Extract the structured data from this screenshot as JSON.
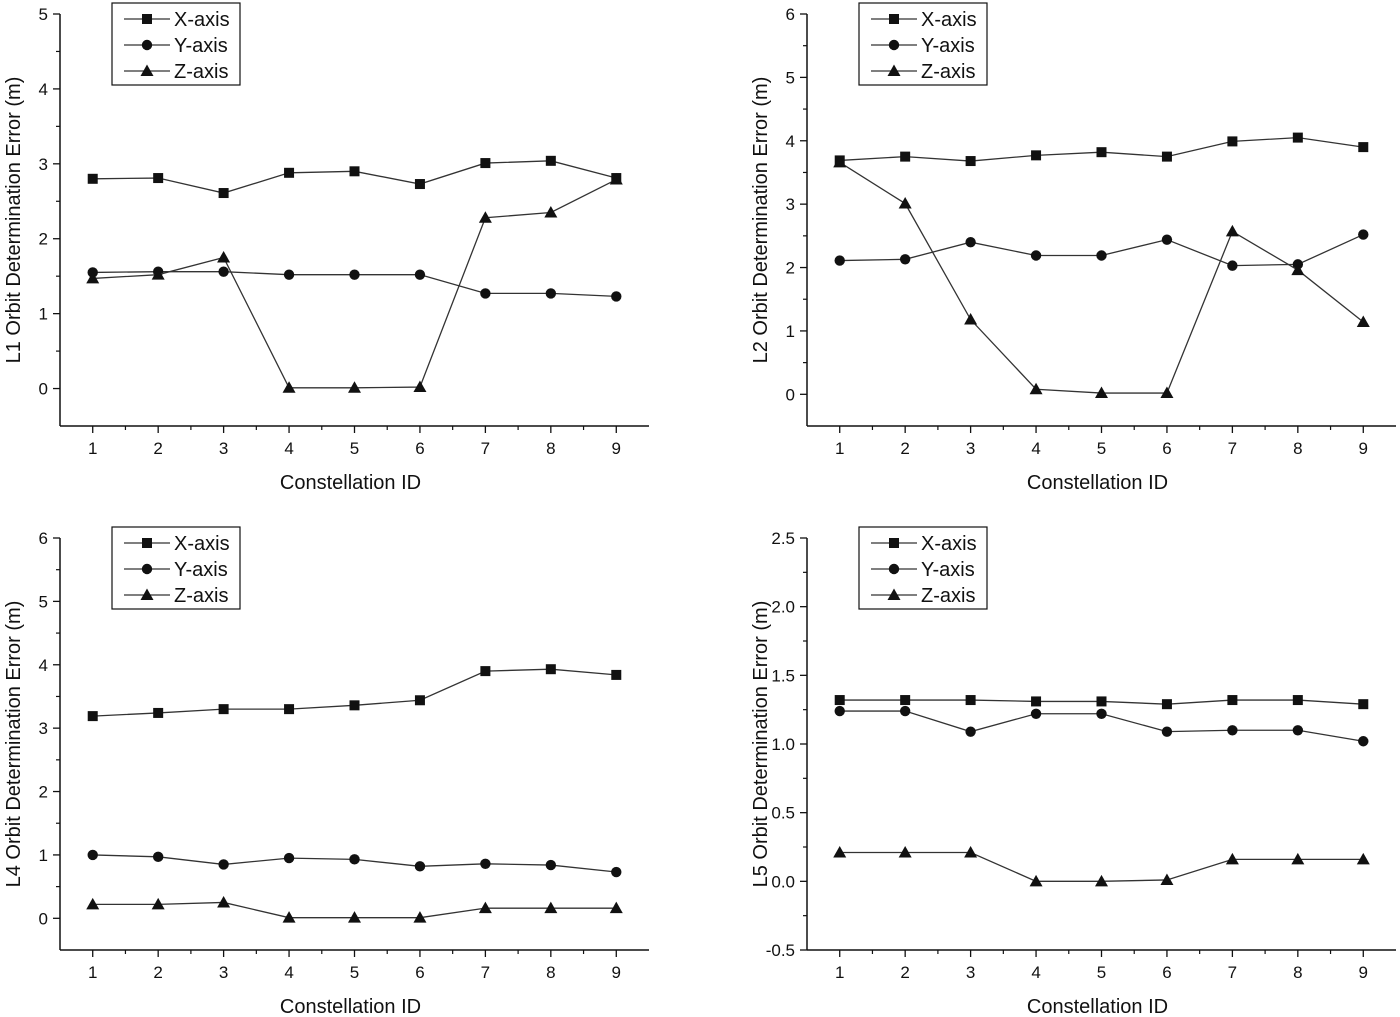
{
  "chart_data": [
    {
      "type": "line",
      "xlabel": "Constellation ID",
      "ylabel": "L1 Orbit Determination Error (m)",
      "x": [
        1,
        2,
        3,
        4,
        5,
        6,
        7,
        8,
        9
      ],
      "xlim": [
        0.5,
        9.5
      ],
      "ylim": [
        -0.5,
        5
      ],
      "yticks": [
        0,
        1,
        2,
        3,
        4,
        5
      ],
      "ytick_labels": [
        "0",
        "1",
        "2",
        "3",
        "4",
        "5"
      ],
      "legend_position": "top-left",
      "grid": false,
      "series": [
        {
          "name": "X-axis",
          "marker": "square",
          "values": [
            2.8,
            2.81,
            2.61,
            2.88,
            2.9,
            2.73,
            3.01,
            3.04,
            2.81
          ]
        },
        {
          "name": "Y-axis",
          "marker": "circle",
          "values": [
            1.55,
            1.56,
            1.56,
            1.52,
            1.52,
            1.52,
            1.27,
            1.27,
            1.23
          ]
        },
        {
          "name": "Z-axis",
          "marker": "triangle",
          "values": [
            1.47,
            1.52,
            1.75,
            0.01,
            0.01,
            0.02,
            2.28,
            2.35,
            2.79
          ]
        }
      ]
    },
    {
      "type": "line",
      "xlabel": "Constellation ID",
      "ylabel": "L2 Orbit Determination Error (m)",
      "x": [
        1,
        2,
        3,
        4,
        5,
        6,
        7,
        8,
        9
      ],
      "xlim": [
        0.5,
        9.5
      ],
      "ylim": [
        -0.5,
        6
      ],
      "yticks": [
        0,
        1,
        2,
        3,
        4,
        5,
        6
      ],
      "ytick_labels": [
        "0",
        "1",
        "2",
        "3",
        "4",
        "5",
        "6"
      ],
      "legend_position": "top-left",
      "grid": false,
      "series": [
        {
          "name": "X-axis",
          "marker": "square",
          "values": [
            3.69,
            3.75,
            3.68,
            3.77,
            3.82,
            3.75,
            3.99,
            4.05,
            3.9
          ]
        },
        {
          "name": "Y-axis",
          "marker": "circle",
          "values": [
            2.11,
            2.13,
            2.4,
            2.19,
            2.19,
            2.44,
            2.03,
            2.05,
            2.52
          ]
        },
        {
          "name": "Z-axis",
          "marker": "triangle",
          "values": [
            3.66,
            3.01,
            1.18,
            0.08,
            0.02,
            0.02,
            2.57,
            1.96,
            1.14
          ]
        }
      ]
    },
    {
      "type": "line",
      "xlabel": "Constellation ID",
      "ylabel": "L4 Orbit Determination Error (m)",
      "x": [
        1,
        2,
        3,
        4,
        5,
        6,
        7,
        8,
        9
      ],
      "xlim": [
        0.5,
        9.5
      ],
      "ylim": [
        -0.5,
        6
      ],
      "yticks": [
        0,
        1,
        2,
        3,
        4,
        5,
        6
      ],
      "ytick_labels": [
        "0",
        "1",
        "2",
        "3",
        "4",
        "5",
        "6"
      ],
      "legend_position": "top-left",
      "grid": false,
      "series": [
        {
          "name": "X-axis",
          "marker": "square",
          "values": [
            3.19,
            3.24,
            3.3,
            3.3,
            3.36,
            3.44,
            3.9,
            3.93,
            3.84
          ]
        },
        {
          "name": "Y-axis",
          "marker": "circle",
          "values": [
            1.0,
            0.97,
            0.85,
            0.95,
            0.93,
            0.82,
            0.86,
            0.84,
            0.73
          ]
        },
        {
          "name": "Z-axis",
          "marker": "triangle",
          "values": [
            0.22,
            0.22,
            0.25,
            0.01,
            0.01,
            0.01,
            0.16,
            0.16,
            0.16
          ]
        }
      ]
    },
    {
      "type": "line",
      "xlabel": "Constellation ID",
      "ylabel": "L5 Orbit Determination Error (m)",
      "x": [
        1,
        2,
        3,
        4,
        5,
        6,
        7,
        8,
        9
      ],
      "xlim": [
        0.5,
        9.5
      ],
      "ylim": [
        -0.5,
        2.5
      ],
      "yticks": [
        -0.5,
        0,
        0.5,
        1,
        1.5,
        2,
        2.5
      ],
      "ytick_labels": [
        "-0.5",
        "0.0",
        "0.5",
        "1.0",
        "1.5",
        "2.0",
        "2.5"
      ],
      "legend_position": "top-left",
      "grid": false,
      "series": [
        {
          "name": "X-axis",
          "marker": "square",
          "values": [
            1.32,
            1.32,
            1.32,
            1.31,
            1.31,
            1.29,
            1.32,
            1.32,
            1.29
          ]
        },
        {
          "name": "Y-axis",
          "marker": "circle",
          "values": [
            1.24,
            1.24,
            1.09,
            1.22,
            1.22,
            1.09,
            1.1,
            1.1,
            1.02
          ]
        },
        {
          "name": "Z-axis",
          "marker": "triangle",
          "values": [
            0.21,
            0.21,
            0.21,
            0.0,
            0.0,
            0.01,
            0.16,
            0.16,
            0.16
          ]
        }
      ]
    }
  ]
}
